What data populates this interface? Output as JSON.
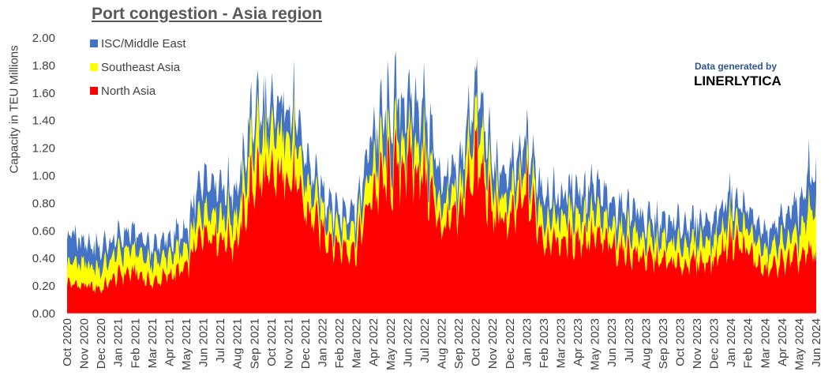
{
  "chart_data": {
    "type": "area",
    "stacked": true,
    "title": "Port congestion - Asia region",
    "ylabel": "Capacity in TEU Millions",
    "xlabel": "",
    "ylim": [
      0,
      2.0
    ],
    "yticks": [
      "0.00",
      "0.20",
      "0.40",
      "0.60",
      "0.80",
      "1.00",
      "1.20",
      "1.40",
      "1.60",
      "1.80",
      "2.00"
    ],
    "grid": false,
    "legend_position": "top-left",
    "x_tick_labels": [
      "Oct 2020",
      "Nov 2020",
      "Dec 2020",
      "Jan 2021",
      "Feb 2021",
      "Mar 2021",
      "Apr 2021",
      "May 2021",
      "Jun 2021",
      "Jul 2021",
      "Aug 2021",
      "Sep 2021",
      "Oct 2021",
      "Nov 2021",
      "Dec 2021",
      "Jan 2022",
      "Feb 2022",
      "Mar 2022",
      "Apr 2022",
      "May 2022",
      "Jun 2022",
      "Jul 2022",
      "Aug 2022",
      "Sep 2022",
      "Oct 2022",
      "Nov 2022",
      "Dec 2022",
      "Jan 2023",
      "Feb 2023",
      "Mar 2023",
      "Apr 2023",
      "May 2023",
      "Jun 2023",
      "Jul 2023",
      "Aug 2023",
      "Sep 2023",
      "Oct 2023",
      "Nov 2023",
      "Dec 2023",
      "Jan 2024",
      "Feb 2024",
      "Mar 2024",
      "Apr 2024",
      "May 2024",
      "Jun 2024"
    ],
    "x": [
      "Oct 2020",
      "Nov 2020",
      "Dec 2020",
      "Jan 2021",
      "Feb 2021",
      "Mar 2021",
      "Apr 2021",
      "May 2021",
      "Jun 2021",
      "Jul 2021",
      "Aug 2021",
      "Sep 2021",
      "Oct 2021",
      "Nov 2021",
      "Dec 2021",
      "Jan 2022",
      "Feb 2022",
      "Mar 2022",
      "Apr 2022",
      "May 2022",
      "Jun 2022",
      "Jul 2022",
      "Aug 2022",
      "Sep 2022",
      "Oct 2022",
      "Nov 2022",
      "Dec 2022",
      "Jan 2023",
      "Feb 2023",
      "Mar 2023",
      "Apr 2023",
      "May 2023",
      "Jun 2023",
      "Jul 2023",
      "Aug 2023",
      "Sep 2023",
      "Oct 2023",
      "Nov 2023",
      "Dec 2023",
      "Jan 2024",
      "Feb 2024",
      "Mar 2024",
      "Apr 2024",
      "May 2024",
      "Jun 2024"
    ],
    "series": [
      {
        "name": "North Asia",
        "color": "#ff0000",
        "values": [
          0.22,
          0.2,
          0.18,
          0.28,
          0.3,
          0.22,
          0.28,
          0.32,
          0.62,
          0.55,
          0.52,
          1.0,
          0.95,
          1.05,
          0.75,
          0.6,
          0.48,
          0.48,
          0.9,
          1.0,
          1.1,
          1.0,
          0.62,
          0.7,
          1.15,
          0.72,
          0.65,
          0.88,
          0.55,
          0.52,
          0.55,
          0.55,
          0.48,
          0.45,
          0.4,
          0.38,
          0.35,
          0.38,
          0.38,
          0.55,
          0.45,
          0.3,
          0.38,
          0.4,
          0.45
        ]
      },
      {
        "name": "Southeast Asia",
        "color": "#ffff00",
        "values": [
          0.16,
          0.15,
          0.15,
          0.16,
          0.15,
          0.14,
          0.14,
          0.14,
          0.18,
          0.17,
          0.17,
          0.3,
          0.28,
          0.32,
          0.18,
          0.15,
          0.14,
          0.14,
          0.2,
          0.18,
          0.18,
          0.2,
          0.14,
          0.15,
          0.3,
          0.17,
          0.16,
          0.16,
          0.16,
          0.17,
          0.18,
          0.16,
          0.15,
          0.15,
          0.14,
          0.14,
          0.14,
          0.14,
          0.14,
          0.15,
          0.14,
          0.14,
          0.15,
          0.17,
          0.35
        ]
      },
      {
        "name": "ISC/Middle East",
        "color": "#4472c4",
        "values": [
          0.2,
          0.17,
          0.15,
          0.12,
          0.12,
          0.12,
          0.12,
          0.13,
          0.22,
          0.2,
          0.2,
          0.22,
          0.2,
          0.22,
          0.18,
          0.16,
          0.14,
          0.14,
          0.25,
          0.27,
          0.28,
          0.3,
          0.2,
          0.16,
          0.25,
          0.18,
          0.18,
          0.2,
          0.18,
          0.17,
          0.2,
          0.19,
          0.17,
          0.17,
          0.15,
          0.15,
          0.15,
          0.15,
          0.16,
          0.17,
          0.14,
          0.14,
          0.18,
          0.22,
          0.3
        ]
      }
    ]
  },
  "legend": {
    "items": [
      {
        "label": "ISC/Middle East",
        "color": "#4472c4"
      },
      {
        "label": "Southeast Asia",
        "color": "#ffff00"
      },
      {
        "label": "North Asia",
        "color": "#ff0000"
      }
    ]
  },
  "credit": {
    "line1": "Data generated by",
    "line2": "LINERLYTICA"
  }
}
